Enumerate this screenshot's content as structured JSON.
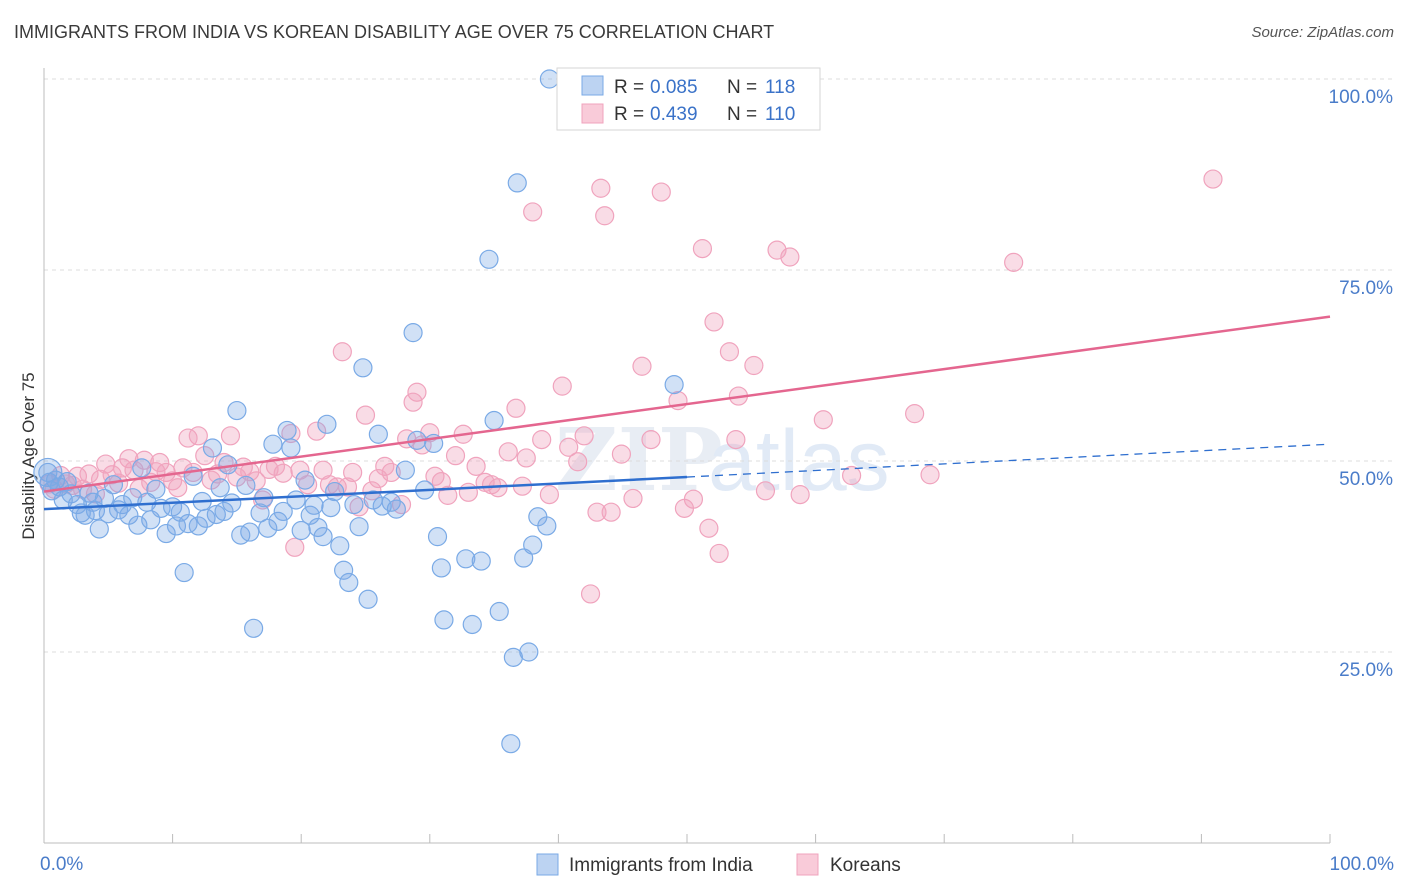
{
  "title": "IMMIGRANTS FROM INDIA VS KOREAN DISABILITY AGE OVER 75 CORRELATION CHART",
  "source": "Source: ZipAtlas.com",
  "watermark": {
    "zip": "ZIP",
    "atlas": "atlas"
  },
  "legend": {
    "rows": [
      {
        "r_label": "R = ",
        "r_value": "0.085",
        "n_label": "N = ",
        "n_value": "118"
      },
      {
        "r_label": "R = ",
        "r_value": "0.439",
        "n_label": "N = ",
        "n_value": "110"
      }
    ]
  },
  "bottom_legend": [
    "Immigrants from India",
    "Koreans"
  ],
  "chart_data": {
    "type": "scatter",
    "title": "IMMIGRANTS FROM INDIA VS KOREAN DISABILITY AGE OVER 75 CORRELATION CHART",
    "xlabel": "",
    "ylabel": "Disability Age Over 75",
    "xlim": [
      0,
      100
    ],
    "ylim": [
      0,
      105
    ],
    "x_tick_labels": [
      "0.0%",
      "100.0%"
    ],
    "y_ticks": [
      25,
      50,
      75,
      100
    ],
    "y_tick_labels": [
      "25.0%",
      "50.0%",
      "75.0%",
      "100.0%"
    ],
    "grid": true,
    "legend_position": "top-center",
    "colors": {
      "india": "#7aaae6",
      "korea": "#f0a3bd",
      "india_line": "#2f6fcf",
      "korea_line": "#e4668f"
    },
    "series": [
      {
        "name": "Immigrants from India",
        "R": 0.085,
        "N": 118,
        "trend": {
          "x": [
            0,
            50
          ],
          "y": [
            43.7,
            47.9
          ],
          "dashed_to": [
            100,
            52.2
          ]
        },
        "points": [
          [
            0.3,
            48.5
          ],
          [
            0.4,
            47.2
          ],
          [
            0.6,
            46.1
          ],
          [
            0.9,
            47.5
          ],
          [
            1.2,
            46.6
          ],
          [
            1.5,
            44.9
          ],
          [
            1.8,
            47.3
          ],
          [
            2.1,
            45.7
          ],
          [
            2.6,
            44.3
          ],
          [
            2.9,
            43.2
          ],
          [
            3.2,
            42.9
          ],
          [
            3.5,
            45.8
          ],
          [
            3.8,
            44.6
          ],
          [
            4.0,
            43.5
          ],
          [
            4.3,
            41.1
          ],
          [
            4.7,
            45.1
          ],
          [
            5.0,
            43.1
          ],
          [
            5.4,
            46.9
          ],
          [
            5.8,
            43.6
          ],
          [
            6.1,
            44.3
          ],
          [
            6.6,
            42.9
          ],
          [
            6.9,
            45.2
          ],
          [
            7.3,
            41.6
          ],
          [
            7.6,
            49.1
          ],
          [
            8.0,
            44.6
          ],
          [
            8.3,
            42.3
          ],
          [
            8.7,
            46.3
          ],
          [
            9.1,
            43.8
          ],
          [
            9.5,
            40.5
          ],
          [
            10.0,
            44.0
          ],
          [
            10.3,
            41.5
          ],
          [
            10.6,
            43.3
          ],
          [
            10.9,
            35.4
          ],
          [
            11.2,
            41.8
          ],
          [
            11.6,
            48.0
          ],
          [
            12.0,
            41.5
          ],
          [
            12.3,
            44.7
          ],
          [
            12.6,
            42.5
          ],
          [
            13.1,
            51.7
          ],
          [
            13.4,
            43.0
          ],
          [
            13.7,
            46.5
          ],
          [
            14.0,
            43.4
          ],
          [
            14.3,
            49.5
          ],
          [
            14.6,
            44.5
          ],
          [
            15.0,
            56.6
          ],
          [
            15.3,
            40.3
          ],
          [
            15.7,
            46.8
          ],
          [
            16.0,
            40.7
          ],
          [
            16.3,
            28.1
          ],
          [
            16.8,
            43.2
          ],
          [
            17.1,
            45.2
          ],
          [
            17.4,
            41.2
          ],
          [
            17.8,
            52.2
          ],
          [
            18.2,
            42.1
          ],
          [
            18.6,
            43.4
          ],
          [
            18.9,
            54.0
          ],
          [
            19.2,
            51.7
          ],
          [
            19.6,
            44.9
          ],
          [
            20.0,
            40.9
          ],
          [
            20.3,
            47.5
          ],
          [
            20.7,
            42.9
          ],
          [
            21.0,
            44.2
          ],
          [
            21.3,
            41.3
          ],
          [
            21.7,
            40.1
          ],
          [
            22.0,
            54.8
          ],
          [
            22.3,
            43.9
          ],
          [
            22.6,
            46.0
          ],
          [
            23.0,
            38.9
          ],
          [
            23.3,
            35.7
          ],
          [
            23.7,
            34.1
          ],
          [
            24.1,
            44.3
          ],
          [
            24.5,
            41.4
          ],
          [
            24.8,
            62.2
          ],
          [
            25.2,
            31.9
          ],
          [
            25.6,
            44.9
          ],
          [
            26.0,
            53.5
          ],
          [
            26.3,
            44.1
          ],
          [
            27.0,
            44.6
          ],
          [
            27.4,
            43.7
          ],
          [
            28.1,
            48.8
          ],
          [
            28.7,
            66.8
          ],
          [
            29.0,
            52.7
          ],
          [
            29.6,
            46.2
          ],
          [
            30.3,
            52.3
          ],
          [
            30.6,
            40.1
          ],
          [
            30.9,
            36.0
          ],
          [
            31.1,
            29.2
          ],
          [
            32.8,
            37.2
          ],
          [
            33.3,
            28.6
          ],
          [
            34.0,
            36.9
          ],
          [
            34.6,
            76.4
          ],
          [
            35.0,
            55.3
          ],
          [
            35.4,
            30.3
          ],
          [
            36.8,
            86.4
          ],
          [
            37.3,
            37.3
          ],
          [
            37.7,
            25.0
          ],
          [
            38.0,
            39.0
          ],
          [
            38.4,
            42.7
          ],
          [
            39.1,
            41.5
          ],
          [
            36.3,
            13.0
          ],
          [
            36.5,
            24.3
          ],
          [
            39.3,
            100.0
          ],
          [
            49.0,
            60.0
          ]
        ]
      },
      {
        "name": "Koreans",
        "R": 0.439,
        "N": 110,
        "trend": {
          "x": [
            0,
            100
          ],
          "y": [
            46.0,
            68.9
          ]
        },
        "points": [
          [
            0.4,
            47.0
          ],
          [
            0.8,
            46.3
          ],
          [
            1.3,
            48.1
          ],
          [
            1.7,
            47.0
          ],
          [
            2.2,
            46.8
          ],
          [
            2.6,
            48.0
          ],
          [
            3.0,
            46.3
          ],
          [
            3.5,
            48.3
          ],
          [
            4.0,
            45.7
          ],
          [
            4.4,
            47.6
          ],
          [
            4.8,
            49.6
          ],
          [
            5.3,
            48.2
          ],
          [
            5.8,
            47.1
          ],
          [
            6.1,
            49.1
          ],
          [
            6.6,
            50.3
          ],
          [
            7.0,
            48.8
          ],
          [
            7.4,
            46.4
          ],
          [
            7.8,
            50.1
          ],
          [
            8.3,
            47.2
          ],
          [
            8.7,
            48.6
          ],
          [
            9.0,
            49.8
          ],
          [
            9.5,
            48.5
          ],
          [
            10.0,
            47.4
          ],
          [
            10.4,
            46.5
          ],
          [
            10.8,
            49.1
          ],
          [
            11.2,
            53.0
          ],
          [
            11.6,
            48.5
          ],
          [
            12.0,
            53.3
          ],
          [
            12.5,
            50.7
          ],
          [
            13.0,
            47.5
          ],
          [
            13.5,
            48.3
          ],
          [
            14.0,
            49.8
          ],
          [
            14.5,
            53.3
          ],
          [
            15.0,
            47.9
          ],
          [
            15.5,
            49.2
          ],
          [
            16.0,
            48.6
          ],
          [
            16.5,
            47.4
          ],
          [
            17.0,
            44.9
          ],
          [
            17.5,
            48.9
          ],
          [
            18.0,
            49.3
          ],
          [
            18.6,
            48.4
          ],
          [
            19.2,
            53.6
          ],
          [
            19.5,
            38.7
          ],
          [
            19.9,
            48.8
          ],
          [
            20.5,
            46.9
          ],
          [
            21.2,
            53.9
          ],
          [
            21.7,
            48.8
          ],
          [
            22.2,
            46.9
          ],
          [
            22.8,
            46.6
          ],
          [
            23.2,
            64.3
          ],
          [
            23.6,
            46.6
          ],
          [
            24.0,
            48.5
          ],
          [
            24.5,
            44.0
          ],
          [
            25.0,
            56.0
          ],
          [
            25.5,
            46.1
          ],
          [
            26.0,
            47.7
          ],
          [
            26.5,
            49.3
          ],
          [
            27.0,
            48.5
          ],
          [
            27.8,
            44.3
          ],
          [
            28.2,
            52.9
          ],
          [
            28.7,
            57.7
          ],
          [
            29.0,
            59.0
          ],
          [
            29.4,
            52.1
          ],
          [
            30.0,
            53.7
          ],
          [
            30.4,
            48.0
          ],
          [
            30.9,
            47.3
          ],
          [
            31.4,
            45.5
          ],
          [
            32.0,
            50.7
          ],
          [
            32.6,
            53.5
          ],
          [
            33.0,
            45.9
          ],
          [
            33.6,
            49.3
          ],
          [
            34.3,
            47.2
          ],
          [
            34.8,
            46.9
          ],
          [
            35.3,
            46.5
          ],
          [
            36.1,
            51.2
          ],
          [
            36.7,
            56.9
          ],
          [
            37.2,
            46.7
          ],
          [
            37.5,
            50.4
          ],
          [
            38.0,
            82.6
          ],
          [
            38.7,
            52.8
          ],
          [
            39.3,
            45.6
          ],
          [
            40.3,
            59.8
          ],
          [
            40.8,
            51.8
          ],
          [
            41.5,
            49.9
          ],
          [
            42.0,
            53.3
          ],
          [
            42.5,
            32.6
          ],
          [
            43.0,
            43.3
          ],
          [
            43.3,
            85.7
          ],
          [
            43.6,
            82.1
          ],
          [
            44.1,
            43.3
          ],
          [
            44.9,
            50.9
          ],
          [
            45.8,
            45.1
          ],
          [
            46.5,
            62.4
          ],
          [
            47.2,
            52.8
          ],
          [
            48.0,
            85.2
          ],
          [
            49.3,
            57.9
          ],
          [
            49.8,
            43.8
          ],
          [
            50.5,
            45.0
          ],
          [
            51.2,
            77.8
          ],
          [
            51.7,
            41.2
          ],
          [
            52.1,
            68.2
          ],
          [
            52.5,
            37.9
          ],
          [
            53.3,
            64.3
          ],
          [
            53.8,
            52.8
          ],
          [
            54.0,
            58.5
          ],
          [
            55.2,
            62.5
          ],
          [
            56.1,
            46.1
          ],
          [
            57.0,
            77.6
          ],
          [
            58.8,
            45.6
          ],
          [
            58.0,
            76.7
          ],
          [
            60.6,
            55.4
          ],
          [
            62.8,
            48.1
          ],
          [
            68.9,
            48.2
          ],
          [
            67.7,
            56.2
          ],
          [
            75.4,
            76.0
          ],
          [
            90.9,
            86.9
          ]
        ]
      }
    ]
  }
}
